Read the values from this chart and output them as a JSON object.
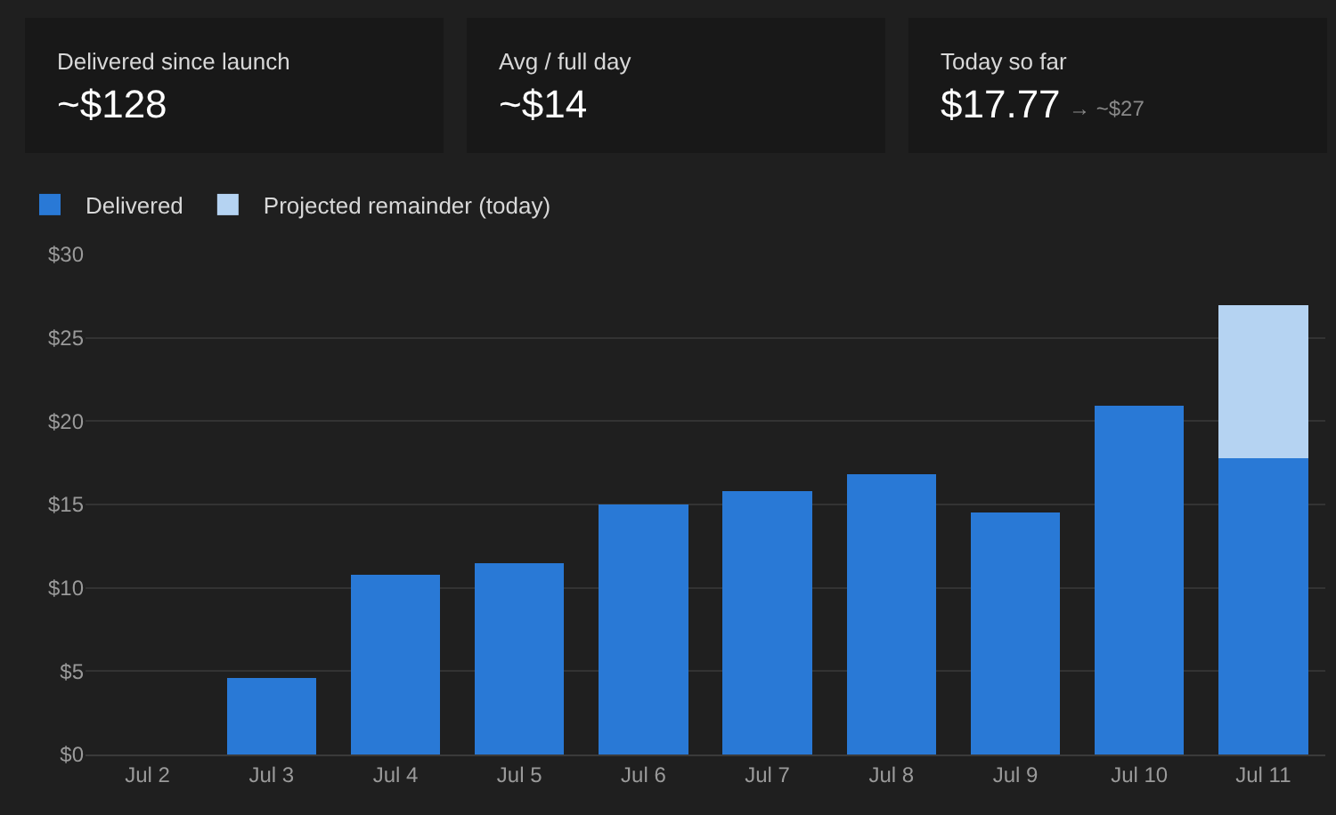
{
  "chart_data": [
    {
      "type": "other",
      "title": "Delivered since launch",
      "annotations": [
        "~$128"
      ]
    },
    {
      "type": "other",
      "title": "Avg / full day",
      "annotations": [
        "~$14"
      ]
    },
    {
      "type": "other",
      "title": "Today so far",
      "annotations": [
        "$17.77",
        "→ ~$27"
      ]
    },
    {
      "type": "bar",
      "stacked": true,
      "categories": [
        "Jul 2",
        "Jul 3",
        "Jul 4",
        "Jul 5",
        "Jul 6",
        "Jul 7",
        "Jul 8",
        "Jul 9",
        "Jul 10",
        "Jul 11"
      ],
      "series": [
        {
          "name": "Delivered",
          "color": "#2979d6",
          "values": [
            0,
            4.6,
            10.8,
            11.5,
            15.0,
            15.8,
            16.8,
            14.5,
            20.9,
            17.77
          ]
        },
        {
          "name": "Projected remainder (today)",
          "color": "#b5d3f2",
          "values": [
            null,
            null,
            null,
            null,
            null,
            null,
            null,
            null,
            null,
            9.2
          ]
        }
      ],
      "ylim": [
        0,
        30
      ],
      "yticks": [
        {
          "value": 0,
          "label": "$0"
        },
        {
          "value": 5,
          "label": "$5"
        },
        {
          "value": 10,
          "label": "$10"
        },
        {
          "value": 15,
          "label": "$15"
        },
        {
          "value": 20,
          "label": "$20"
        },
        {
          "value": 25,
          "label": "$25"
        },
        {
          "value": 30,
          "label": "$30"
        }
      ],
      "grid": "y",
      "legend": "top left"
    }
  ]
}
